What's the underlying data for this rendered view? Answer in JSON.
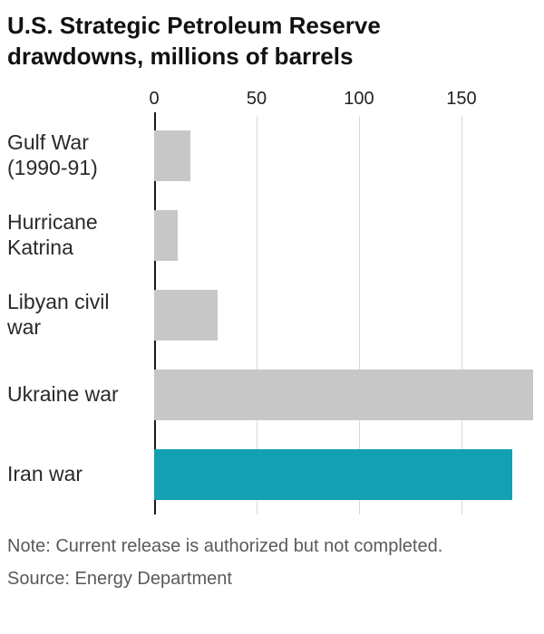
{
  "title": "U.S. Strategic Petroleum Reserve\ndrawdowns, millions of barrels",
  "note": "Note: Current release is authorized but not completed.",
  "source": "Source: Energy Department",
  "colors": {
    "bar_default": "#c7c7c7",
    "bar_highlight": "#12a0b2",
    "axis": "#1a1a1a",
    "grid": "#d9d9d9"
  },
  "chart_data": {
    "type": "bar",
    "orientation": "horizontal",
    "title": "U.S. Strategic Petroleum Reserve drawdowns, millions of barrels",
    "categories": [
      "Gulf War\n(1990-91)",
      "Hurricane\nKatrina",
      "Libyan civil\nwar",
      "Ukraine war",
      "Iran war"
    ],
    "values": [
      17,
      11,
      30,
      180,
      170
    ],
    "bar_colors": [
      "#c7c7c7",
      "#c7c7c7",
      "#c7c7c7",
      "#c7c7c7",
      "#12a0b2"
    ],
    "xlabel": "",
    "ylabel": "",
    "xticks": [
      0,
      50,
      100,
      150
    ],
    "xlim": [
      0,
      185
    ],
    "grid": true,
    "legend": false,
    "unit": "millions of barrels"
  }
}
